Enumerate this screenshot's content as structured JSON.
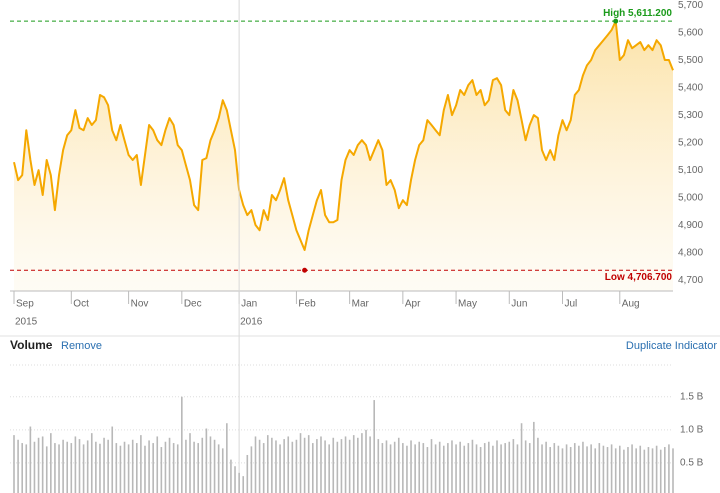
{
  "chart_data": [
    {
      "type": "line",
      "color": "#f5a800",
      "fill": true,
      "values": [
        5099,
        5034,
        5052,
        5215,
        5107,
        5016,
        5070,
        4980,
        5107,
        5052,
        4925,
        5052,
        5143,
        5197,
        5215,
        5288,
        5223,
        5215,
        5259,
        5234,
        5252,
        5343,
        5335,
        5306,
        5215,
        5179,
        5234,
        5179,
        5125,
        5107,
        5125,
        5016,
        5125,
        5234,
        5215,
        5179,
        5161,
        5215,
        5259,
        5234,
        5161,
        5143,
        5088,
        5034,
        4943,
        4925,
        5107,
        5114,
        5179,
        5215,
        5259,
        5324,
        5288,
        5215,
        5143,
        4998,
        4943,
        4907,
        4925,
        4871,
        4852,
        4925,
        4889,
        4980,
        4961,
        4998,
        5041,
        4961,
        4907,
        4852,
        4816,
        4780,
        4852,
        4907,
        4961,
        4998,
        4907,
        4881,
        4881,
        4889,
        5034,
        5107,
        5143,
        5125,
        5161,
        5179,
        5161,
        5107,
        5143,
        5179,
        5143,
        5016,
        5034,
        4998,
        4932,
        4961,
        4943,
        5034,
        5107,
        5161,
        5179,
        5252,
        5234,
        5215,
        5197,
        5288,
        5343,
        5270,
        5306,
        5361,
        5343,
        5379,
        5397,
        5343,
        5361,
        5306,
        5324,
        5397,
        5404,
        5379,
        5288,
        5270,
        5361,
        5324,
        5252,
        5179,
        5234,
        5270,
        5259,
        5143,
        5107,
        5143,
        5107,
        5197,
        5252,
        5215,
        5252,
        5343,
        5361,
        5415,
        5451,
        5470,
        5506,
        5524,
        5542,
        5560,
        5579,
        5611,
        5470,
        5488,
        5542,
        5513,
        5524,
        5535,
        5506,
        5524,
        5506,
        5542,
        5524,
        5470,
        5470,
        5433
      ],
      "ylim": [
        4653,
        5688
      ],
      "yticks": [
        {
          "value": 4700,
          "label": "4,700"
        },
        {
          "value": 4800,
          "label": "4,800"
        },
        {
          "value": 4900,
          "label": "4,900"
        },
        {
          "value": 5000,
          "label": "5,000"
        },
        {
          "value": 5100,
          "label": "5,100"
        },
        {
          "value": 5200,
          "label": "5,200"
        },
        {
          "value": 5300,
          "label": "5,300"
        },
        {
          "value": 5400,
          "label": "5,400"
        },
        {
          "value": 5500,
          "label": "5,500"
        },
        {
          "value": 5600,
          "label": "5,600"
        },
        {
          "value": 5700,
          "label": "5,700"
        }
      ],
      "xticks": [
        {
          "value": 0,
          "label": "Sep"
        },
        {
          "value": 14,
          "label": "Oct"
        },
        {
          "value": 28,
          "label": "Nov"
        },
        {
          "value": 41,
          "label": "Dec"
        },
        {
          "value": 55,
          "label": "Jan"
        },
        {
          "value": 69,
          "label": "Feb"
        },
        {
          "value": 82,
          "label": "Mar"
        },
        {
          "value": 95,
          "label": "Apr"
        },
        {
          "value": 108,
          "label": "May"
        },
        {
          "value": 121,
          "label": "Jun"
        },
        {
          "value": 134,
          "label": "Jul"
        },
        {
          "value": 148,
          "label": "Aug"
        }
      ],
      "year_ticks": [
        {
          "value": 0,
          "label": "2015"
        },
        {
          "value": 55,
          "label": "2016"
        }
      ],
      "reference_lines": [
        {
          "kind": "high",
          "value": 5611.2,
          "label": "High 5,611.200",
          "color": "#1a9a1a"
        },
        {
          "kind": "low",
          "value": 4706.7,
          "label": "Low 4,706.700",
          "color": "#c00000"
        }
      ]
    },
    {
      "type": "bar",
      "color": "#b8b8b8",
      "values": [
        0.92,
        0.85,
        0.8,
        0.78,
        1.05,
        0.82,
        0.88,
        0.9,
        0.75,
        0.95,
        0.8,
        0.78,
        0.85,
        0.82,
        0.8,
        0.9,
        0.86,
        0.78,
        0.84,
        0.95,
        0.82,
        0.79,
        0.88,
        0.85,
        1.05,
        0.8,
        0.76,
        0.82,
        0.78,
        0.85,
        0.8,
        0.92,
        0.76,
        0.84,
        0.8,
        0.9,
        0.74,
        0.82,
        0.88,
        0.8,
        0.78,
        1.5,
        0.85,
        0.95,
        0.82,
        0.8,
        0.88,
        1.02,
        0.9,
        0.85,
        0.78,
        0.72,
        1.1,
        0.55,
        0.45,
        0.35,
        0.3,
        0.62,
        0.75,
        0.9,
        0.85,
        0.8,
        0.92,
        0.88,
        0.84,
        0.78,
        0.86,
        0.9,
        0.82,
        0.85,
        0.95,
        0.88,
        0.92,
        0.8,
        0.86,
        0.9,
        0.84,
        0.78,
        0.88,
        0.82,
        0.86,
        0.9,
        0.85,
        0.92,
        0.88,
        0.95,
        1.0,
        0.9,
        1.45,
        0.86,
        0.8,
        0.84,
        0.78,
        0.82,
        0.88,
        0.8,
        0.76,
        0.84,
        0.78,
        0.82,
        0.8,
        0.74,
        0.86,
        0.78,
        0.82,
        0.76,
        0.8,
        0.84,
        0.78,
        0.82,
        0.76,
        0.8,
        0.85,
        0.78,
        0.74,
        0.8,
        0.82,
        0.76,
        0.84,
        0.78,
        0.8,
        0.82,
        0.86,
        0.78,
        1.1,
        0.84,
        0.8,
        1.12,
        0.88,
        0.78,
        0.82,
        0.74,
        0.8,
        0.76,
        0.72,
        0.78,
        0.74,
        0.8,
        0.76,
        0.82,
        0.75,
        0.78,
        0.72,
        0.8,
        0.76,
        0.74,
        0.78,
        0.72,
        0.76,
        0.7,
        0.74,
        0.78,
        0.72,
        0.76,
        0.7,
        0.74,
        0.72,
        0.76,
        0.7,
        0.74,
        0.78,
        0.72
      ],
      "ylim": [
        0,
        1.98
      ],
      "yticks": [
        {
          "value": 0.5,
          "label": "0.5 B"
        },
        {
          "value": 1.0,
          "label": "1.0 B"
        },
        {
          "value": 1.5,
          "label": "1.5 B"
        }
      ],
      "grid": true
    }
  ],
  "toolbar": {
    "title": "Volume",
    "remove": "Remove",
    "duplicate": "Duplicate Indicator"
  }
}
